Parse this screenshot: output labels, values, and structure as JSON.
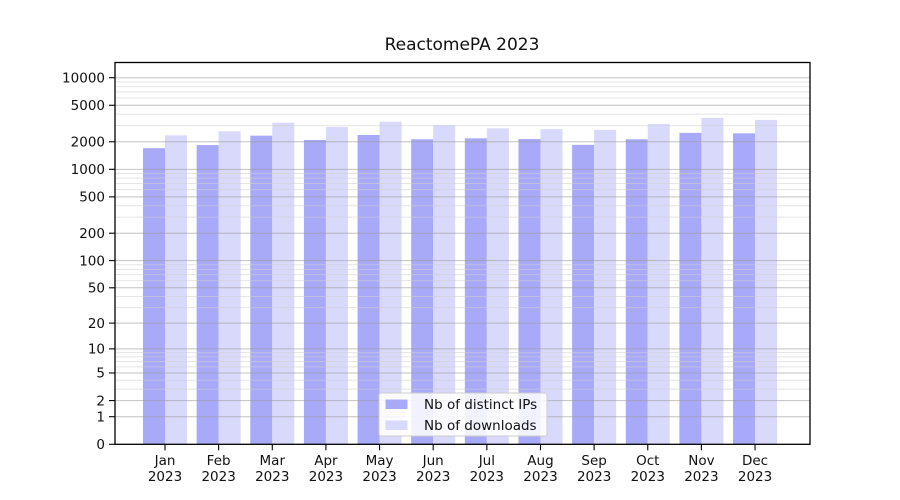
{
  "chart_data": {
    "type": "bar",
    "title": "ReactomePA 2023",
    "xlabel": "",
    "ylabel": "",
    "year_label": "2023",
    "categories": [
      "Jan",
      "Feb",
      "Mar",
      "Apr",
      "May",
      "Jun",
      "Jul",
      "Aug",
      "Sep",
      "Oct",
      "Nov",
      "Dec"
    ],
    "series": [
      {
        "name": "Nb of distinct IPs",
        "color": "#a9a9fa",
        "values": [
          1700,
          1840,
          2330,
          2090,
          2370,
          2130,
          2180,
          2140,
          1850,
          2130,
          2500,
          2470
        ]
      },
      {
        "name": "Nb of downloads",
        "color": "#d9d9fb",
        "values": [
          2350,
          2600,
          3230,
          2900,
          3310,
          3050,
          2800,
          2750,
          2700,
          3130,
          3650,
          3460
        ]
      }
    ],
    "y_scale": "log10(value+1)",
    "y_ticks": [
      0,
      1,
      2,
      5,
      10,
      20,
      50,
      100,
      200,
      500,
      1000,
      2000,
      5000,
      10000
    ],
    "y_minor_ticks": [
      3,
      4,
      6,
      7,
      8,
      9,
      30,
      40,
      60,
      70,
      80,
      90,
      300,
      400,
      600,
      700,
      800,
      900,
      3000,
      4000,
      6000,
      7000,
      8000,
      9000
    ],
    "ylim": [
      0,
      14500
    ],
    "grid": true,
    "legend_position": "bottom-center",
    "colors": {
      "background": "#ffffff",
      "frame": "#000000",
      "grid_major": "#9a9a9a",
      "grid_minor": "#cfcfcf",
      "legend_border": "#cccccc"
    }
  }
}
